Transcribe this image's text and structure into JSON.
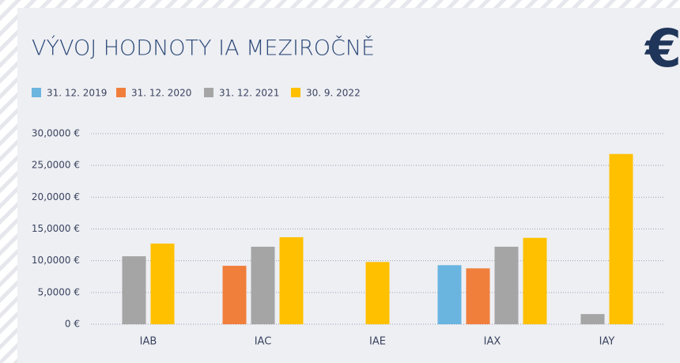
{
  "corner_symbol": "€",
  "chart_data": {
    "type": "bar",
    "title": "VÝVOJ HODNOTY IA MEZIROČNĚ",
    "categories": [
      "IAB",
      "IAC",
      "IAE",
      "IAX",
      "IAY"
    ],
    "series": [
      {
        "name": "31. 12. 2019",
        "color": "#6ab4e0",
        "values": [
          null,
          null,
          null,
          9.3,
          null
        ]
      },
      {
        "name": "31. 12. 2020",
        "color": "#f07f3c",
        "values": [
          null,
          9.2,
          null,
          8.8,
          null
        ]
      },
      {
        "name": "31. 12. 2021",
        "color": "#a5a5a5",
        "values": [
          10.7,
          12.2,
          null,
          12.2,
          1.6
        ]
      },
      {
        "name": "30. 9. 2022",
        "color": "#ffc000",
        "values": [
          12.7,
          13.7,
          9.8,
          13.6,
          26.8
        ]
      }
    ],
    "ylim": [
      0,
      30
    ],
    "yticks": [
      {
        "value": 0,
        "label": "0 €"
      },
      {
        "value": 5,
        "label": "5,0000 €"
      },
      {
        "value": 10,
        "label": "10,0000 €"
      },
      {
        "value": 15,
        "label": "15,0000 €"
      },
      {
        "value": 20,
        "label": "20,0000 €"
      },
      {
        "value": 25,
        "label": "25,0000 €"
      },
      {
        "value": 30,
        "label": "30,0000 €"
      }
    ],
    "grid": true,
    "legend": "top"
  }
}
